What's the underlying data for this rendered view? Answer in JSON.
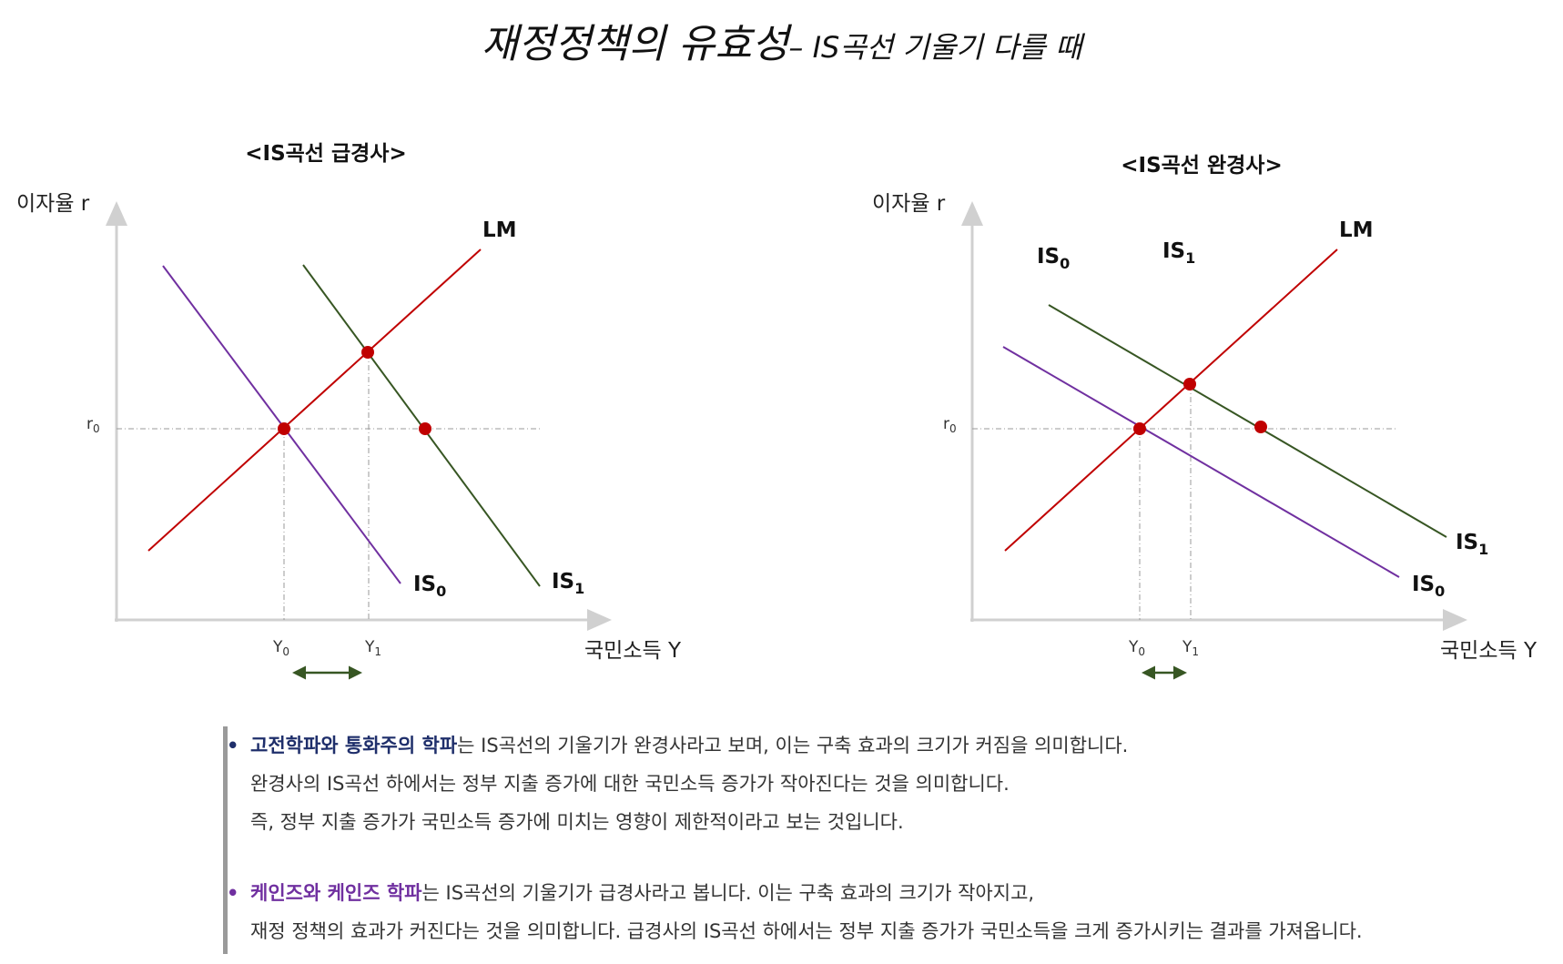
{
  "title": {
    "main": "재정정책의 유효성",
    "sub": "– IS곡선 기울기 다를 때"
  },
  "colors": {
    "lm": "#c00000",
    "is1": "#375623",
    "is0": "#7030a0",
    "point": "#c00000",
    "arrow": "#375623"
  },
  "diagrams": [
    {
      "heading": "<IS곡선 급경사>",
      "y_axis_label": "이자율 r",
      "x_axis_label": "국민소득 Y",
      "r0_label": "r",
      "r0_sub": "0",
      "y0_label": "Y",
      "y0_sub": "0",
      "y1_label": "Y",
      "y1_sub": "1",
      "lm_label": "LM",
      "is0_label": "IS",
      "is0_sub": "0",
      "is1_label": "IS",
      "is1_sub": "1"
    },
    {
      "heading": "<IS곡선 완경사>",
      "y_axis_label": "이자율 r",
      "x_axis_label": "국민소득 Y",
      "r0_label": "r",
      "r0_sub": "0",
      "y0_label": "Y",
      "y0_sub": "0",
      "y1_label": "Y",
      "y1_sub": "1",
      "lm_label": "LM",
      "is0_label": "IS",
      "is0_sub": "0",
      "is1_label": "IS",
      "is1_sub": "1",
      "is0_top_label": "IS",
      "is0_top_sub": "0",
      "is1_top_label": "IS",
      "is1_top_sub": "1"
    }
  ],
  "notes": [
    {
      "bullet": "•",
      "highlight": "고전학파와 통화주의 학파",
      "lines": [
        "는 IS곡선의 기울기가 완경사라고 보며, 이는 구축 효과의 크기가 커짐을 의미합니다.",
        "완경사의 IS곡선 하에서는 정부 지출 증가에 대한 국민소득 증가가 작아진다는 것을 의미합니다.",
        "즉, 정부 지출 증가가 국민소득 증가에 미치는 영향이 제한적이라고 보는 것입니다."
      ]
    },
    {
      "bullet": "•",
      "highlight": "케인즈와 케인즈 학파",
      "lines": [
        "는 IS곡선의 기울기가 급경사라고 봅니다. 이는 구축 효과의 크기가 작아지고,",
        "재정 정책의 효과가 커진다는 것을 의미합니다. 급경사의 IS곡선 하에서는 정부 지출 증가가 국민소득을 크게 증가시키는 결과를 가져옵니다."
      ]
    }
  ]
}
